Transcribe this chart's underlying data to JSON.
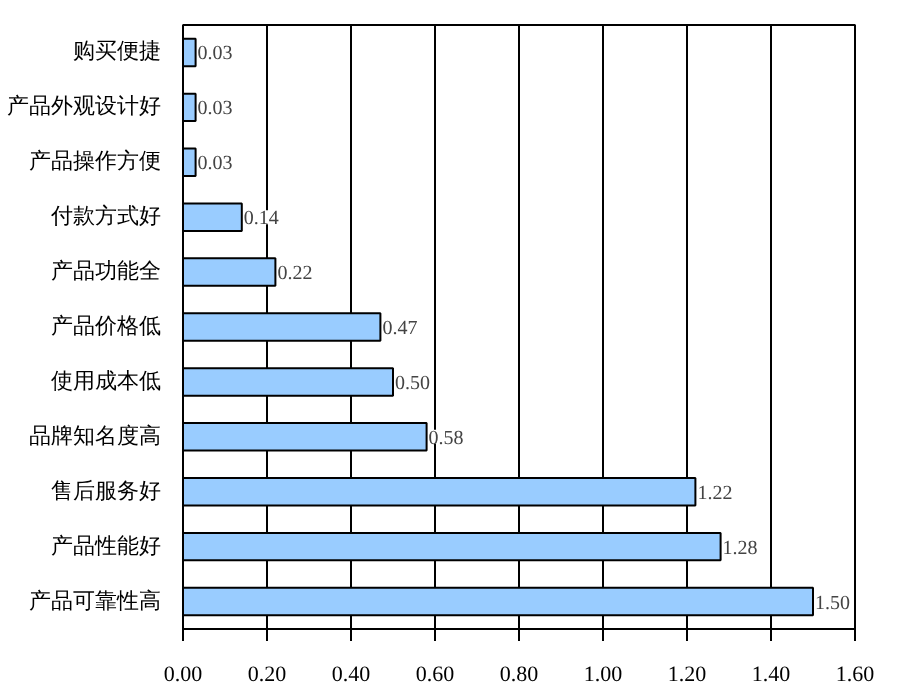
{
  "chart_data": {
    "type": "bar",
    "orientation": "horizontal",
    "categories": [
      "购买便捷",
      "产品外观设计好",
      "产品操作方便",
      "付款方式好",
      "产品功能全",
      "产品价格低",
      "使用成本低",
      "品牌知名度高",
      "售后服务好",
      "产品性能好",
      "产品可靠性高"
    ],
    "values": [
      0.03,
      0.03,
      0.03,
      0.14,
      0.22,
      0.47,
      0.5,
      0.58,
      1.22,
      1.28,
      1.5
    ],
    "value_labels": [
      "0.03",
      "0.03",
      "0.03",
      "0.14",
      "0.22",
      "0.47",
      "0.50",
      "0.58",
      "1.22",
      "1.28",
      "1.50"
    ],
    "color": "#99ccff",
    "xlim": [
      0,
      1.6
    ],
    "xticks": [
      {
        "value": 0,
        "label": "0.00"
      },
      {
        "value": 0.2,
        "label": "0.20"
      },
      {
        "value": 0.4,
        "label": "0.40"
      },
      {
        "value": 0.6,
        "label": "0.60"
      },
      {
        "value": 0.8,
        "label": "0.80"
      },
      {
        "value": 1.0,
        "label": "1.00"
      },
      {
        "value": 1.2,
        "label": "1.20"
      },
      {
        "value": 1.4,
        "label": "1.40"
      },
      {
        "value": 1.6,
        "label": "1.60"
      }
    ],
    "grid": "x"
  }
}
